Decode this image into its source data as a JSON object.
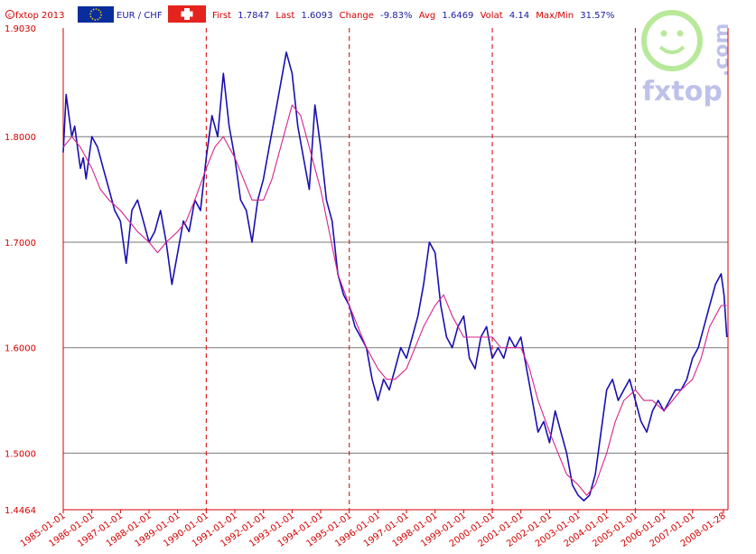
{
  "header": {
    "copyright": "fxtop 2013",
    "pair": "EUR / CHF",
    "first_label": "First",
    "first_value": "1.7847",
    "last_label": "Last",
    "last_value": "1.6093",
    "change_label": "Change",
    "change_value": "-9.83%",
    "avg_label": "Avg",
    "avg_value": "1.6469",
    "volat_label": "Volat",
    "volat_value": "4.14",
    "maxmin_label": "Max/Min",
    "maxmin_value": "31.57%"
  },
  "logo": {
    "text": "fxtop",
    "suffix": ".com"
  },
  "colors": {
    "price": "#1a0fb0",
    "average": "#d6238a",
    "axis": "#d40000",
    "grid": "#7a7a7a",
    "vgrid": "#d40000"
  },
  "chart_data": {
    "type": "line",
    "ylim": [
      1.4464,
      1.903
    ],
    "xlim": [
      1985.0,
      2008.24
    ],
    "y_ticks": [
      "1.9030",
      "1.8000",
      "1.7000",
      "1.6000",
      "1.5000",
      "1.4464"
    ],
    "y_tick_values": [
      1.903,
      1.8,
      1.7,
      1.6,
      1.5,
      1.4464
    ],
    "x_ticks": [
      "1985-01-01",
      "1986-01-01",
      "1987-01-01",
      "1988-01-01",
      "1989-01-01",
      "1990-01-01",
      "1991-01-01",
      "1992-01-01",
      "1993-01-01",
      "1994-01-01",
      "1995-01-01",
      "1996-01-01",
      "1997-01-01",
      "1998-01-01",
      "1999-01-01",
      "2000-01-01",
      "2001-01-01",
      "2002-01-01",
      "2003-01-01",
      "2004-01-01",
      "2005-01-01",
      "2006-01-01",
      "2007-01-01",
      "2008-01-28"
    ],
    "x_tick_values": [
      1985,
      1986,
      1987,
      1988,
      1989,
      1990,
      1991,
      1992,
      1993,
      1994,
      1995,
      1996,
      1997,
      1998,
      1999,
      2000,
      2001,
      2002,
      2003,
      2004,
      2005,
      2006,
      2007,
      2008.08
    ],
    "vgrid_years": [
      1990,
      1995,
      2000,
      2005
    ],
    "series": [
      {
        "x": [
          1985.0,
          1985.1,
          1985.2,
          1985.3,
          1985.4,
          1985.5,
          1985.6,
          1985.7,
          1985.8,
          1986.0,
          1986.2,
          1986.4,
          1986.6,
          1986.8,
          1987.0,
          1987.2,
          1987.4,
          1987.6,
          1987.8,
          1988.0,
          1988.2,
          1988.4,
          1988.6,
          1988.8,
          1989.0,
          1989.2,
          1989.4,
          1989.6,
          1989.8,
          1990.0,
          1990.2,
          1990.4,
          1990.6,
          1990.8,
          1991.0,
          1991.2,
          1991.4,
          1991.6,
          1991.8,
          1992.0,
          1992.2,
          1992.4,
          1992.6,
          1992.8,
          1993.0,
          1993.2,
          1993.4,
          1993.6,
          1993.8,
          1994.0,
          1994.2,
          1994.4,
          1994.6,
          1994.8,
          1995.0,
          1995.2,
          1995.4,
          1995.6,
          1995.8,
          1996.0,
          1996.2,
          1996.4,
          1996.6,
          1996.8,
          1997.0,
          1997.2,
          1997.4,
          1997.6,
          1997.8,
          1998.0,
          1998.2,
          1998.4,
          1998.6,
          1998.8,
          1999.0,
          1999.2,
          1999.4,
          1999.6,
          1999.8,
          2000.0,
          2000.2,
          2000.4,
          2000.6,
          2000.8,
          2001.0,
          2001.2,
          2001.4,
          2001.6,
          2001.8,
          2002.0,
          2002.2,
          2002.4,
          2002.6,
          2002.8,
          2003.0,
          2003.2,
          2003.4,
          2003.6,
          2003.8,
          2004.0,
          2004.2,
          2004.4,
          2004.6,
          2004.8,
          2005.0,
          2005.2,
          2005.4,
          2005.6,
          2005.8,
          2006.0,
          2006.2,
          2006.4,
          2006.6,
          2006.8,
          2007.0,
          2007.2,
          2007.4,
          2007.6,
          2007.8,
          2008.0,
          2008.1,
          2008.2
        ],
        "values": [
          1.785,
          1.84,
          1.82,
          1.8,
          1.81,
          1.79,
          1.77,
          1.78,
          1.76,
          1.8,
          1.79,
          1.77,
          1.75,
          1.73,
          1.72,
          1.68,
          1.73,
          1.74,
          1.72,
          1.7,
          1.71,
          1.73,
          1.7,
          1.66,
          1.69,
          1.72,
          1.71,
          1.74,
          1.73,
          1.78,
          1.82,
          1.8,
          1.86,
          1.81,
          1.78,
          1.74,
          1.73,
          1.7,
          1.74,
          1.76,
          1.79,
          1.82,
          1.85,
          1.88,
          1.86,
          1.81,
          1.78,
          1.75,
          1.83,
          1.79,
          1.74,
          1.72,
          1.67,
          1.65,
          1.64,
          1.62,
          1.61,
          1.6,
          1.57,
          1.55,
          1.57,
          1.56,
          1.58,
          1.6,
          1.59,
          1.61,
          1.63,
          1.66,
          1.7,
          1.69,
          1.64,
          1.61,
          1.6,
          1.62,
          1.63,
          1.59,
          1.58,
          1.61,
          1.62,
          1.59,
          1.6,
          1.59,
          1.61,
          1.6,
          1.61,
          1.58,
          1.55,
          1.52,
          1.53,
          1.51,
          1.54,
          1.52,
          1.5,
          1.47,
          1.46,
          1.455,
          1.46,
          1.48,
          1.52,
          1.56,
          1.57,
          1.55,
          1.56,
          1.57,
          1.55,
          1.53,
          1.52,
          1.54,
          1.55,
          1.54,
          1.55,
          1.56,
          1.56,
          1.57,
          1.59,
          1.6,
          1.62,
          1.64,
          1.66,
          1.67,
          1.65,
          1.61
        ]
      },
      {
        "x": [
          1985.0,
          1985.3,
          1985.6,
          1986.0,
          1986.3,
          1986.6,
          1987.0,
          1987.3,
          1987.6,
          1988.0,
          1988.3,
          1988.6,
          1989.0,
          1989.3,
          1989.6,
          1990.0,
          1990.3,
          1990.6,
          1991.0,
          1991.3,
          1991.6,
          1992.0,
          1992.3,
          1992.6,
          1993.0,
          1993.3,
          1993.6,
          1994.0,
          1994.3,
          1994.6,
          1995.0,
          1995.3,
          1995.6,
          1996.0,
          1996.3,
          1996.6,
          1997.0,
          1997.3,
          1997.6,
          1998.0,
          1998.3,
          1998.6,
          1999.0,
          1999.3,
          1999.6,
          2000.0,
          2000.3,
          2000.6,
          2001.0,
          2001.3,
          2001.6,
          2002.0,
          2002.3,
          2002.6,
          2003.0,
          2003.3,
          2003.6,
          2004.0,
          2004.3,
          2004.6,
          2005.0,
          2005.3,
          2005.6,
          2006.0,
          2006.3,
          2006.6,
          2007.0,
          2007.3,
          2007.6,
          2008.0,
          2008.2
        ],
        "values": [
          1.79,
          1.8,
          1.79,
          1.77,
          1.75,
          1.74,
          1.73,
          1.72,
          1.71,
          1.7,
          1.69,
          1.7,
          1.71,
          1.72,
          1.74,
          1.77,
          1.79,
          1.8,
          1.78,
          1.76,
          1.74,
          1.74,
          1.76,
          1.79,
          1.83,
          1.82,
          1.79,
          1.75,
          1.71,
          1.67,
          1.64,
          1.62,
          1.6,
          1.58,
          1.57,
          1.57,
          1.58,
          1.6,
          1.62,
          1.64,
          1.65,
          1.63,
          1.61,
          1.61,
          1.61,
          1.61,
          1.6,
          1.6,
          1.6,
          1.58,
          1.55,
          1.52,
          1.5,
          1.48,
          1.47,
          1.46,
          1.47,
          1.5,
          1.53,
          1.55,
          1.56,
          1.55,
          1.55,
          1.54,
          1.55,
          1.56,
          1.57,
          1.59,
          1.62,
          1.64,
          1.64
        ]
      }
    ]
  }
}
